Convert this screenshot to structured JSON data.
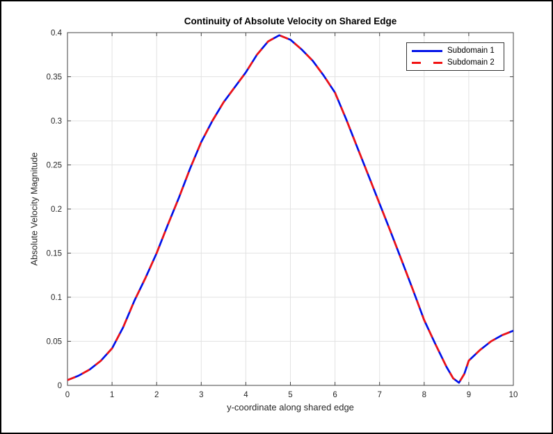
{
  "chart_data": {
    "type": "line",
    "title": "Continuity of Absolute Velocity on Shared Edge",
    "xlabel": "y-coordinate along shared edge",
    "ylabel": "Absolute Velocity Magnitude",
    "xlim": [
      0,
      10
    ],
    "ylim": [
      0,
      0.4
    ],
    "xticks": [
      0,
      1,
      2,
      3,
      4,
      5,
      6,
      7,
      8,
      9,
      10
    ],
    "xtick_labels": [
      "0",
      "1",
      "2",
      "3",
      "4",
      "5",
      "6",
      "7",
      "8",
      "9",
      "10"
    ],
    "yticks": [
      0,
      0.05,
      0.1,
      0.15,
      0.2,
      0.25,
      0.3,
      0.35,
      0.4
    ],
    "ytick_labels": [
      "0",
      "0.05",
      "0.1",
      "0.15",
      "0.2",
      "0.25",
      "0.3",
      "0.35",
      "0.4"
    ],
    "grid": true,
    "legend_position": "northeast",
    "x": [
      0,
      0.25,
      0.5,
      0.75,
      1,
      1.25,
      1.5,
      1.75,
      2,
      2.25,
      2.5,
      2.75,
      3,
      3.25,
      3.5,
      3.75,
      4,
      4.25,
      4.5,
      4.75,
      5,
      5.25,
      5.5,
      5.75,
      6,
      6.25,
      6.5,
      6.75,
      7,
      7.25,
      7.5,
      7.75,
      8,
      8.25,
      8.5,
      8.65,
      8.78,
      8.9,
      9,
      9.25,
      9.5,
      9.75,
      10
    ],
    "series": [
      {
        "name": "Subdomain 1",
        "color": "#0010e8",
        "line": "solid",
        "values": [
          0.006,
          0.011,
          0.018,
          0.028,
          0.042,
          0.066,
          0.096,
          0.122,
          0.15,
          0.182,
          0.213,
          0.246,
          0.276,
          0.3,
          0.321,
          0.338,
          0.355,
          0.375,
          0.39,
          0.397,
          0.392,
          0.381,
          0.368,
          0.351,
          0.332,
          0.302,
          0.27,
          0.238,
          0.206,
          0.174,
          0.141,
          0.108,
          0.074,
          0.047,
          0.021,
          0.008,
          0.003,
          0.013,
          0.028,
          0.04,
          0.05,
          0.057,
          0.062
        ]
      },
      {
        "name": "Subdomain 2",
        "color": "#f21212",
        "line": "dashed",
        "values": [
          0.006,
          0.011,
          0.018,
          0.028,
          0.042,
          0.066,
          0.096,
          0.122,
          0.15,
          0.182,
          0.213,
          0.246,
          0.276,
          0.3,
          0.321,
          0.338,
          0.355,
          0.375,
          0.39,
          0.397,
          0.392,
          0.381,
          0.368,
          0.351,
          0.332,
          0.302,
          0.27,
          0.238,
          0.206,
          0.174,
          0.141,
          0.108,
          0.074,
          0.047,
          0.021,
          0.008,
          0.003,
          0.013,
          0.028,
          0.04,
          0.05,
          0.057,
          0.062
        ]
      }
    ],
    "colors": {
      "grid": "#e2e2e2",
      "axis": "#424242",
      "tick_text": "#262626",
      "background": "#ffffff"
    }
  }
}
